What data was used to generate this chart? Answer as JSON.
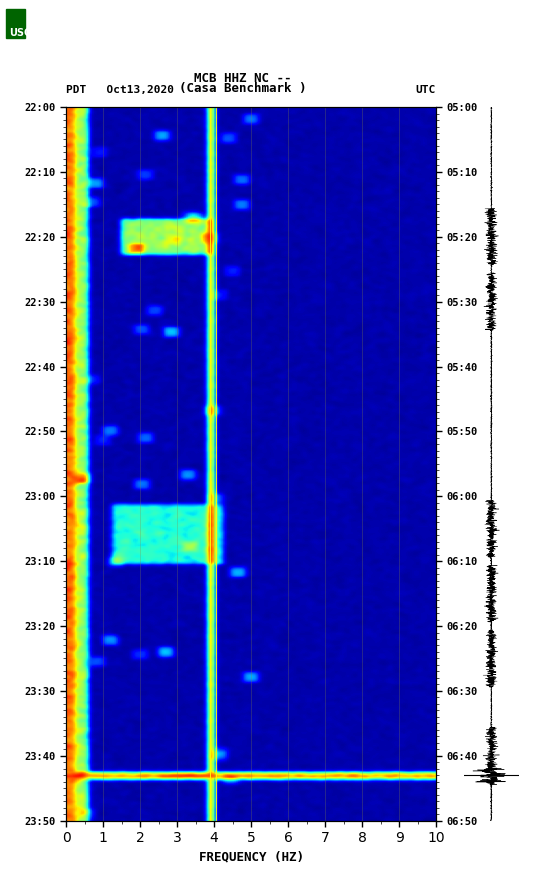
{
  "title_line1": "MCB HHZ NC --",
  "title_line2": "(Casa Benchmark )",
  "left_label": "PDT   Oct13,2020",
  "right_label": "UTC",
  "xlabel": "FREQUENCY (HZ)",
  "freq_min": 0,
  "freq_max": 10,
  "time_start_pdt": "22:00",
  "time_end_pdt": "23:50",
  "time_start_utc": "05:00",
  "time_end_utc": "06:50",
  "ytick_pdt": [
    "22:00",
    "22:10",
    "22:20",
    "22:30",
    "22:40",
    "22:50",
    "23:00",
    "23:10",
    "23:20",
    "23:30",
    "23:40",
    "23:50"
  ],
  "ytick_utc": [
    "05:00",
    "05:10",
    "05:20",
    "05:30",
    "05:40",
    "05:50",
    "06:00",
    "06:10",
    "06:20",
    "06:30",
    "06:40",
    "06:50"
  ],
  "xticks": [
    0,
    1,
    2,
    3,
    4,
    5,
    6,
    7,
    8,
    9,
    10
  ],
  "vertical_lines_freq": [
    3.9,
    4.05
  ],
  "background_color": "#000080",
  "fig_bg": "#ffffff",
  "colormap": "jet"
}
